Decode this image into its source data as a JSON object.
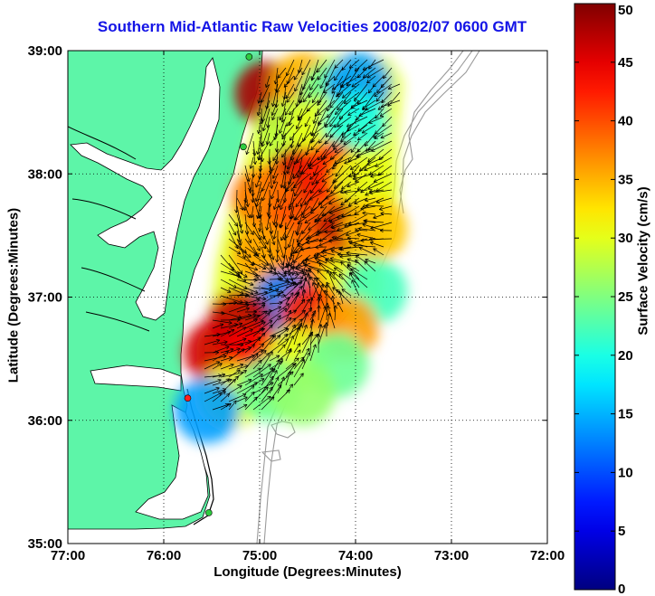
{
  "chart_data": {
    "type": "heatmap",
    "title": "Southern Mid-Atlantic Raw Velocities 2008/02/07 0600 GMT",
    "xlabel": "Longitude (Degrees:Minutes)",
    "ylabel": "Latitude (Degrees:Minutes)",
    "colorbar_label": "Surface Velocity (cm/s)",
    "x_ticks": [
      {
        "value": -77,
        "label": "77:00"
      },
      {
        "value": -76,
        "label": "76:00"
      },
      {
        "value": -75,
        "label": "75:00"
      },
      {
        "value": -74,
        "label": "74:00"
      },
      {
        "value": -73,
        "label": "73:00"
      },
      {
        "value": -72,
        "label": "72:00"
      }
    ],
    "y_ticks": [
      {
        "value": 35,
        "label": "35:00"
      },
      {
        "value": 36,
        "label": "36:00"
      },
      {
        "value": 37,
        "label": "37:00"
      },
      {
        "value": 38,
        "label": "38:00"
      },
      {
        "value": 39,
        "label": "39:00"
      }
    ],
    "xlim": [
      -77,
      -72
    ],
    "ylim": [
      35,
      39
    ],
    "colorbar_range": [
      0,
      50
    ],
    "colorbar_ticks": [
      0,
      5,
      10,
      15,
      20,
      25,
      30,
      35,
      40,
      45,
      50
    ],
    "grid": true,
    "grid_style": "dotted",
    "colormap": "jet",
    "colors": {
      "land": "#5df5a8",
      "title": "#1414e6",
      "grid": "#000000",
      "bathymetry": "#9a9a9a",
      "arrows": "#000000"
    },
    "stations": [
      {
        "lon": -75.11,
        "lat": 38.95,
        "color": "#2ecc40"
      },
      {
        "lon": -75.17,
        "lat": 38.22,
        "color": "#2ecc40"
      },
      {
        "lon": -75.75,
        "lat": 36.18,
        "color": "#ff2020"
      },
      {
        "lon": -75.53,
        "lat": 35.25,
        "color": "#2ecc40"
      }
    ],
    "velocity_field": [
      {
        "lon": -74.92,
        "lat": 38.65,
        "speed": 48
      },
      {
        "lon": -74.55,
        "lat": 38.72,
        "speed": 35
      },
      {
        "lon": -74.25,
        "lat": 38.65,
        "speed": 24
      },
      {
        "lon": -73.97,
        "lat": 38.72,
        "speed": 14
      },
      {
        "lon": -74.7,
        "lat": 38.35,
        "speed": 28
      },
      {
        "lon": -74.35,
        "lat": 38.35,
        "speed": 30
      },
      {
        "lon": -74.0,
        "lat": 38.4,
        "speed": 20
      },
      {
        "lon": -74.6,
        "lat": 37.95,
        "speed": 46
      },
      {
        "lon": -74.25,
        "lat": 38.0,
        "speed": 42
      },
      {
        "lon": -73.9,
        "lat": 37.95,
        "speed": 30
      },
      {
        "lon": -74.95,
        "lat": 37.8,
        "speed": 38
      },
      {
        "lon": -74.6,
        "lat": 37.55,
        "speed": 40
      },
      {
        "lon": -74.1,
        "lat": 37.5,
        "speed": 47
      },
      {
        "lon": -73.8,
        "lat": 37.55,
        "speed": 34
      },
      {
        "lon": -74.95,
        "lat": 37.35,
        "speed": 36
      },
      {
        "lon": -74.45,
        "lat": 37.25,
        "speed": 38
      },
      {
        "lon": -74.05,
        "lat": 37.1,
        "speed": 30
      },
      {
        "lon": -73.8,
        "lat": 37.05,
        "speed": 22
      },
      {
        "lon": -74.75,
        "lat": 36.95,
        "speed": 12
      },
      {
        "lon": -74.45,
        "lat": 36.85,
        "speed": 42
      },
      {
        "lon": -74.1,
        "lat": 36.75,
        "speed": 36
      },
      {
        "lon": -75.2,
        "lat": 36.8,
        "speed": 47
      },
      {
        "lon": -75.45,
        "lat": 36.55,
        "speed": 46
      },
      {
        "lon": -75.05,
        "lat": 36.5,
        "speed": 44
      },
      {
        "lon": -74.6,
        "lat": 36.5,
        "speed": 30
      },
      {
        "lon": -74.2,
        "lat": 36.45,
        "speed": 24
      },
      {
        "lon": -75.3,
        "lat": 36.2,
        "speed": 30
      },
      {
        "lon": -74.9,
        "lat": 36.25,
        "speed": 24
      },
      {
        "lon": -74.55,
        "lat": 36.22,
        "speed": 26
      },
      {
        "lon": -75.55,
        "lat": 36.08,
        "speed": 14
      }
    ]
  }
}
